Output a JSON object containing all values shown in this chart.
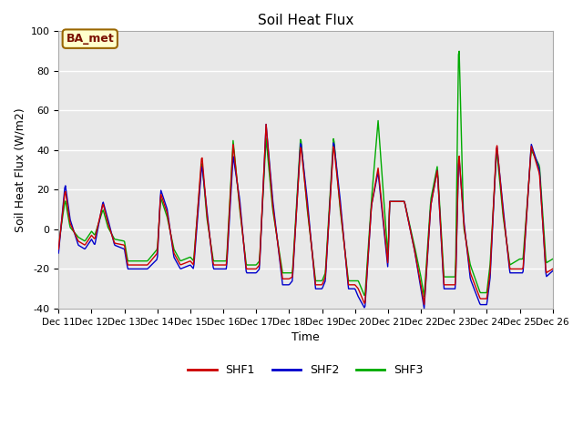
{
  "title": "Soil Heat Flux",
  "xlabel": "Time",
  "ylabel": "Soil Heat Flux (W/m2)",
  "ylim": [
    -40,
    100
  ],
  "ytick_positions": [
    -40,
    -20,
    0,
    20,
    40,
    60,
    80,
    100
  ],
  "background_color": "#ffffff",
  "plot_bg_color": "#e8e8e8",
  "grid_color": "#ffffff",
  "shf1_color": "#cc0000",
  "shf2_color": "#0000cc",
  "shf3_color": "#00aa00",
  "legend_label_box": "BA_met",
  "legend_box_facecolor": "#ffffcc",
  "legend_box_edgecolor": "#996600",
  "series_labels": [
    "SHF1",
    "SHF2",
    "SHF3"
  ],
  "xtick_labels": [
    "Dec 11",
    "Dec 12",
    "Dec 13",
    "Dec 14",
    "Dec 15",
    "Dec 16",
    "Dec 17",
    "Dec 18",
    "Dec 19",
    "Dec 20",
    "Dec 21",
    "Dec 22",
    "Dec 23",
    "Dec 24",
    "Dec 25",
    "Dec 26"
  ],
  "days": 15
}
